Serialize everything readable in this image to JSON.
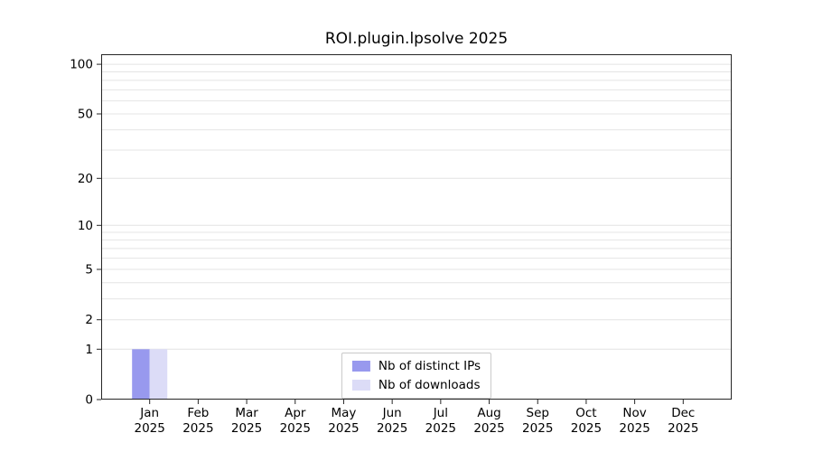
{
  "title": "ROI.plugin.lpsolve 2025",
  "chart_data": {
    "type": "bar",
    "title": "ROI.plugin.lpsolve 2025",
    "categories": [
      "Jan",
      "Feb",
      "Mar",
      "Apr",
      "May",
      "Jun",
      "Jul",
      "Aug",
      "Sep",
      "Oct",
      "Nov",
      "Dec"
    ],
    "year": "2025",
    "series": [
      {
        "name": "Nb of distinct IPs",
        "color": "#9899ee",
        "values": [
          1,
          0,
          0,
          0,
          0,
          0,
          0,
          0,
          0,
          0,
          0,
          0
        ]
      },
      {
        "name": "Nb of downloads",
        "color": "#dcdcf7",
        "values": [
          1,
          0,
          0,
          0,
          0,
          0,
          0,
          0,
          0,
          0,
          0,
          0
        ]
      }
    ],
    "xlabel": "",
    "ylabel": "",
    "y_ticks": [
      0,
      1,
      2,
      5,
      10,
      20,
      50,
      100
    ],
    "y_scale": "log1p",
    "ylim": [
      0,
      115
    ],
    "grid": "horizontal-minor",
    "grid_color": "#e4e4e4",
    "axis_color": "#262626",
    "legend_position": "bottom-center"
  }
}
